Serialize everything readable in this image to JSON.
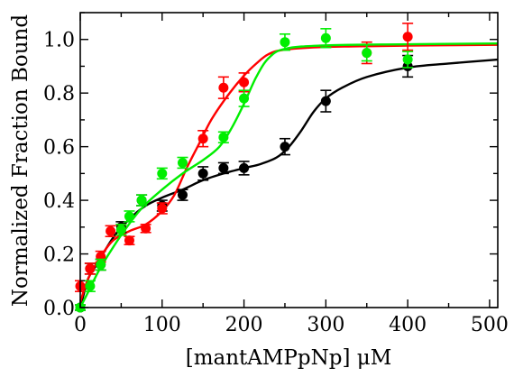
{
  "chart_data": {
    "type": "scatter",
    "xlabel": "[mantAMPpNp] μM",
    "ylabel": "Normalized Fraction Bound",
    "xlim": [
      0,
      510
    ],
    "ylim": [
      0,
      1.1
    ],
    "x_ticks": [
      0,
      100,
      200,
      300,
      400,
      500
    ],
    "x_tick_labels": [
      "0",
      "100",
      "200",
      "300",
      "400",
      "500"
    ],
    "y_ticks": [
      0.0,
      0.2,
      0.4,
      0.6,
      0.8,
      1.0
    ],
    "y_tick_labels": [
      "0.0",
      "0.2",
      "0.4",
      "0.6",
      "0.8",
      "1.0"
    ],
    "grid": false,
    "legend": "none",
    "series": [
      {
        "color": "#000000",
        "points": [
          {
            "x": 0,
            "y": 0.0,
            "err": 0.01
          },
          {
            "x": 12,
            "y": 0.145,
            "err": 0.02
          },
          {
            "x": 25,
            "y": 0.16,
            "err": 0.02
          },
          {
            "x": 50,
            "y": 0.3,
            "err": 0.02
          },
          {
            "x": 75,
            "y": 0.4,
            "err": 0.02
          },
          {
            "x": 100,
            "y": 0.38,
            "err": 0.02
          },
          {
            "x": 125,
            "y": 0.42,
            "err": 0.02
          },
          {
            "x": 150,
            "y": 0.5,
            "err": 0.025
          },
          {
            "x": 175,
            "y": 0.52,
            "err": 0.02
          },
          {
            "x": 200,
            "y": 0.52,
            "err": 0.025
          },
          {
            "x": 250,
            "y": 0.6,
            "err": 0.03
          },
          {
            "x": 300,
            "y": 0.77,
            "err": 0.04
          },
          {
            "x": 400,
            "y": 0.9,
            "err": 0.04
          }
        ],
        "fit": [
          [
            0,
            0.0
          ],
          [
            10,
            0.11
          ],
          [
            20,
            0.16
          ],
          [
            40,
            0.26
          ],
          [
            60,
            0.33
          ],
          [
            80,
            0.38
          ],
          [
            100,
            0.41
          ],
          [
            125,
            0.44
          ],
          [
            150,
            0.475
          ],
          [
            175,
            0.5
          ],
          [
            200,
            0.52
          ],
          [
            220,
            0.535
          ],
          [
            240,
            0.56
          ],
          [
            255,
            0.6
          ],
          [
            270,
            0.66
          ],
          [
            285,
            0.73
          ],
          [
            300,
            0.78
          ],
          [
            320,
            0.82
          ],
          [
            350,
            0.86
          ],
          [
            400,
            0.895
          ],
          [
            450,
            0.91
          ],
          [
            510,
            0.925
          ]
        ]
      },
      {
        "color": "#ff0000",
        "points": [
          {
            "x": 0,
            "y": 0.08,
            "err": 0.02
          },
          {
            "x": 12,
            "y": 0.145,
            "err": 0.02
          },
          {
            "x": 25,
            "y": 0.19,
            "err": 0.02
          },
          {
            "x": 37,
            "y": 0.285,
            "err": 0.02
          },
          {
            "x": 50,
            "y": 0.29,
            "err": 0.02
          },
          {
            "x": 60,
            "y": 0.25,
            "err": 0.015
          },
          {
            "x": 80,
            "y": 0.295,
            "err": 0.015
          },
          {
            "x": 100,
            "y": 0.37,
            "err": 0.02
          },
          {
            "x": 150,
            "y": 0.63,
            "err": 0.03
          },
          {
            "x": 175,
            "y": 0.82,
            "err": 0.04
          },
          {
            "x": 200,
            "y": 0.84,
            "err": 0.035
          },
          {
            "x": 350,
            "y": 0.95,
            "err": 0.04
          },
          {
            "x": 400,
            "y": 1.01,
            "err": 0.05
          }
        ],
        "fit": [
          [
            0,
            0.02
          ],
          [
            10,
            0.11
          ],
          [
            25,
            0.19
          ],
          [
            40,
            0.25
          ],
          [
            60,
            0.285
          ],
          [
            80,
            0.31
          ],
          [
            100,
            0.36
          ],
          [
            115,
            0.42
          ],
          [
            130,
            0.52
          ],
          [
            145,
            0.61
          ],
          [
            160,
            0.7
          ],
          [
            180,
            0.79
          ],
          [
            200,
            0.865
          ],
          [
            215,
            0.91
          ],
          [
            230,
            0.945
          ],
          [
            250,
            0.962
          ],
          [
            300,
            0.972
          ],
          [
            400,
            0.977
          ],
          [
            510,
            0.98
          ]
        ]
      },
      {
        "color": "#00ee00",
        "points": [
          {
            "x": 0,
            "y": 0.0,
            "err": 0.01
          },
          {
            "x": 12,
            "y": 0.08,
            "err": 0.02
          },
          {
            "x": 25,
            "y": 0.16,
            "err": 0.02
          },
          {
            "x": 50,
            "y": 0.29,
            "err": 0.02
          },
          {
            "x": 60,
            "y": 0.34,
            "err": 0.02
          },
          {
            "x": 75,
            "y": 0.4,
            "err": 0.02
          },
          {
            "x": 100,
            "y": 0.5,
            "err": 0.02
          },
          {
            "x": 125,
            "y": 0.54,
            "err": 0.02
          },
          {
            "x": 175,
            "y": 0.635,
            "err": 0.02
          },
          {
            "x": 200,
            "y": 0.78,
            "err": 0.03
          },
          {
            "x": 250,
            "y": 0.99,
            "err": 0.03
          },
          {
            "x": 300,
            "y": 1.005,
            "err": 0.035
          },
          {
            "x": 350,
            "y": 0.95,
            "err": 0.03
          },
          {
            "x": 400,
            "y": 0.925,
            "err": 0.03
          }
        ],
        "fit": [
          [
            0,
            0.0
          ],
          [
            10,
            0.06
          ],
          [
            25,
            0.15
          ],
          [
            50,
            0.27
          ],
          [
            75,
            0.37
          ],
          [
            100,
            0.44
          ],
          [
            125,
            0.5
          ],
          [
            150,
            0.55
          ],
          [
            170,
            0.6
          ],
          [
            185,
            0.67
          ],
          [
            200,
            0.76
          ],
          [
            215,
            0.86
          ],
          [
            230,
            0.93
          ],
          [
            250,
            0.965
          ],
          [
            300,
            0.978
          ],
          [
            400,
            0.982
          ],
          [
            510,
            0.985
          ]
        ]
      }
    ]
  }
}
